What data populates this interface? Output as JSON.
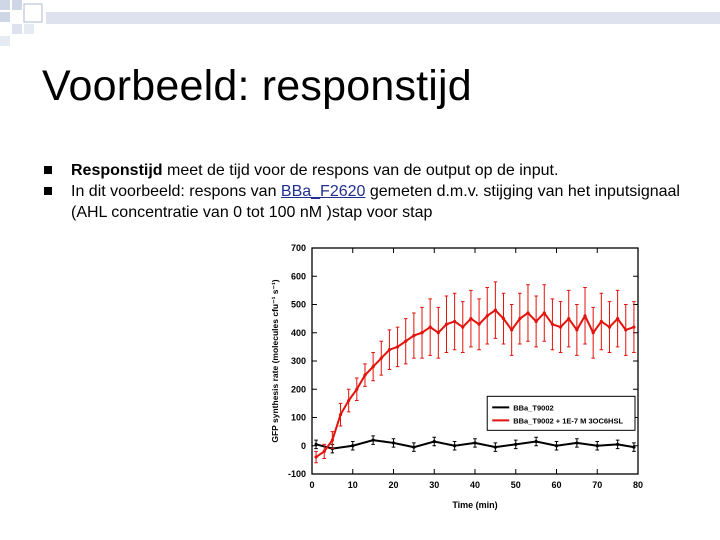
{
  "slide": {
    "title": "Voorbeeld: responstijd",
    "bullets": [
      {
        "strong": "Responstijd",
        "text": " meet de tijd voor de respons van de output op de input."
      },
      {
        "prefix": "In dit voorbeeld: respons van ",
        "link": "BBa_F2620",
        "suffix": " gemeten d.m.v. stijging van het inputsignaal (AHL concentratie van 0 tot 100 nM )stap voor stap"
      }
    ]
  },
  "colors": {
    "decoration": "#cfd6e6",
    "red_series": "#e3120b",
    "black_series": "#000000",
    "link": "#1f2f8f"
  },
  "icons": {
    "bullet": "square-bullet-icon"
  },
  "chart_data": {
    "type": "line",
    "xlabel": "Time (min)",
    "ylabel": "GFP synthesis rate (molecules cfu⁻¹ s⁻¹)",
    "xlim": [
      0,
      80
    ],
    "ylim": [
      -100,
      700
    ],
    "xticks": [
      0,
      10,
      20,
      30,
      40,
      50,
      60,
      70,
      80
    ],
    "yticks": [
      -100,
      0,
      100,
      200,
      300,
      400,
      500,
      600,
      700
    ],
    "grid": false,
    "legend_position": "lower-right",
    "series": [
      {
        "name": "BBa_T9002",
        "color": "#000000",
        "x": [
          1,
          5,
          10,
          15,
          20,
          25,
          30,
          35,
          40,
          45,
          50,
          55,
          60,
          65,
          70,
          75,
          79
        ],
        "y": [
          5,
          -10,
          0,
          20,
          10,
          -5,
          15,
          0,
          10,
          -5,
          5,
          15,
          0,
          10,
          0,
          5,
          -5
        ],
        "err": [
          15,
          15,
          15,
          15,
          15,
          15,
          15,
          15,
          15,
          15,
          15,
          15,
          15,
          15,
          15,
          15,
          15
        ]
      },
      {
        "name": "BBa_T9002 + 1E-7 M 3OC6HSL",
        "color": "#e3120b",
        "x": [
          1,
          3,
          5,
          7,
          9,
          11,
          13,
          15,
          17,
          19,
          21,
          23,
          25,
          27,
          29,
          31,
          33,
          35,
          37,
          39,
          41,
          43,
          45,
          47,
          49,
          51,
          53,
          55,
          57,
          59,
          61,
          63,
          65,
          67,
          69,
          71,
          73,
          75,
          77,
          79
        ],
        "y": [
          -40,
          -20,
          20,
          110,
          160,
          200,
          250,
          280,
          310,
          340,
          350,
          370,
          390,
          400,
          420,
          400,
          430,
          440,
          420,
          450,
          430,
          460,
          480,
          450,
          410,
          450,
          470,
          440,
          470,
          430,
          420,
          450,
          410,
          460,
          400,
          440,
          420,
          450,
          410,
          420
        ],
        "err": [
          20,
          25,
          30,
          40,
          40,
          40,
          40,
          50,
          60,
          70,
          70,
          80,
          80,
          90,
          100,
          90,
          100,
          100,
          90,
          100,
          90,
          100,
          100,
          90,
          90,
          90,
          100,
          90,
          100,
          90,
          90,
          100,
          90,
          100,
          90,
          100,
          90,
          100,
          90,
          90
        ]
      }
    ]
  }
}
